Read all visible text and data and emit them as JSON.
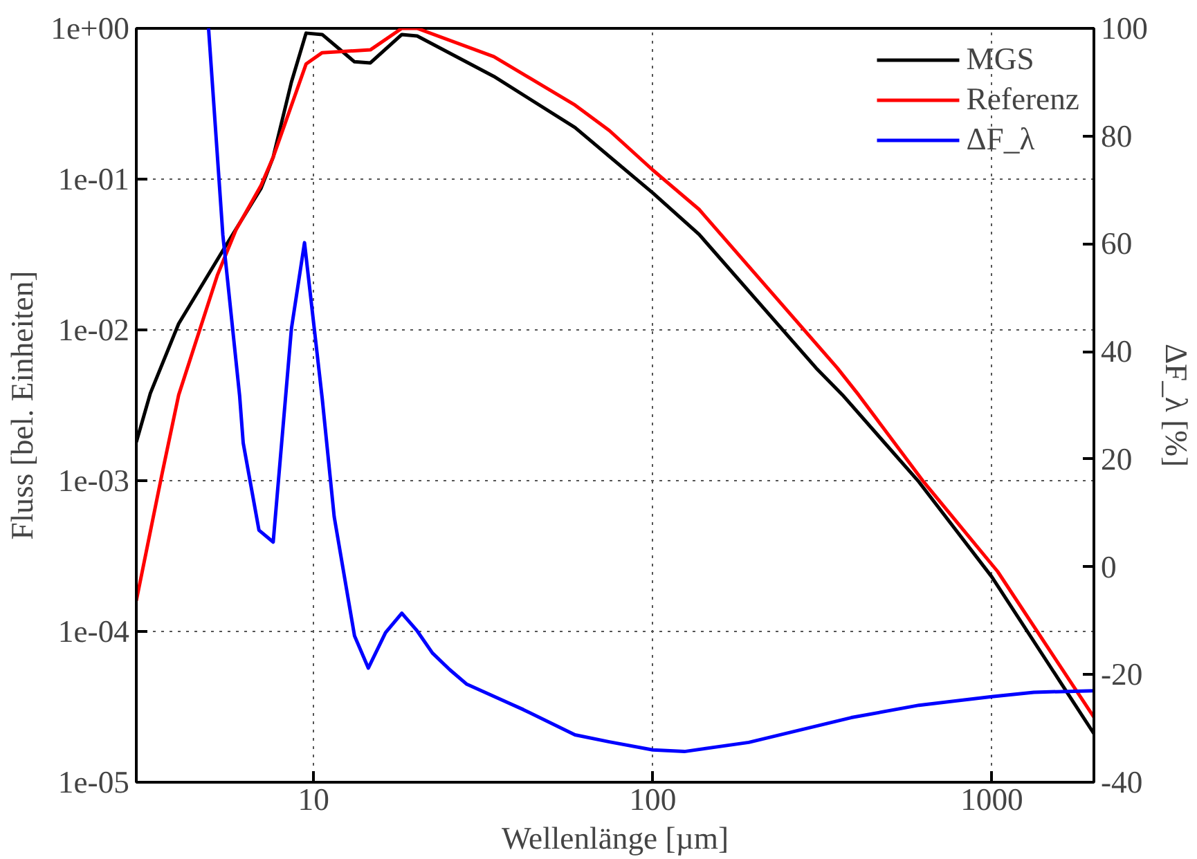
{
  "chart_data": {
    "type": "line",
    "xlabel": "Wellenlänge [µm]",
    "ylabel": "Fluss [bel. Einheiten]",
    "y2label": "ΔF_λ [%]",
    "log": "xy",
    "grid": true,
    "legend": "top right",
    "line_style": "solid",
    "marker": "none",
    "xlim": [
      3,
      2000
    ],
    "xticks": [
      10,
      100,
      1000
    ],
    "ylim": [
      1e-05,
      1
    ],
    "yticks": [
      {
        "value": 1,
        "label": "1e+00"
      },
      {
        "value": 0.1,
        "label": "1e-01"
      },
      {
        "value": 0.01,
        "label": "1e-02"
      },
      {
        "value": 0.001,
        "label": "1e-03"
      },
      {
        "value": 0.0001,
        "label": "1e-04"
      },
      {
        "value": 1e-05,
        "label": "1e-05"
      }
    ],
    "y2lim": [
      -40,
      100
    ],
    "y2ticks": [
      -40,
      -20,
      0,
      20,
      40,
      60,
      80,
      100
    ],
    "series": [
      {
        "name": "MGS",
        "color": "#000000",
        "x": [
          3,
          3.3,
          4,
          5.5,
          7,
          7.6,
          8.6,
          9.5,
          10.6,
          13.2,
          14.7,
          18.2,
          20.2,
          34,
          59,
          100,
          137,
          303,
          363,
          610,
          1000,
          2000
        ],
        "values": [
          0.0018,
          0.0038,
          0.011,
          0.036,
          0.087,
          0.14,
          0.44,
          0.93,
          0.91,
          0.6,
          0.59,
          0.91,
          0.89,
          0.48,
          0.22,
          0.081,
          0.043,
          0.0056,
          0.0037,
          0.00098,
          0.00023,
          2.1e-05
        ]
      },
      {
        "name": "Referenz",
        "color": "#ff0000",
        "x": [
          3,
          3.57,
          4,
          5.2,
          5.9,
          7,
          7.6,
          9.5,
          10.6,
          14.7,
          18.2,
          20.2,
          34,
          59,
          74.5,
          100,
          137,
          350,
          405,
          630,
          1040,
          2000
        ],
        "values": [
          0.00016,
          0.0011,
          0.0037,
          0.023,
          0.046,
          0.091,
          0.14,
          0.58,
          0.69,
          0.72,
          1.0,
          1.0,
          0.65,
          0.31,
          0.21,
          0.115,
          0.063,
          0.0056,
          0.0037,
          0.00098,
          0.00025,
          2.7e-05
        ]
      },
      {
        "name": "ΔF_λ",
        "color": "#0000ff",
        "axis": "y2",
        "x": [
          4.9,
          5.4,
          6.05,
          6.2,
          6.9,
          7.6,
          8.6,
          9.4,
          10.6,
          11.5,
          13.2,
          14.5,
          16.3,
          18.2,
          20.2,
          22.4,
          25.2,
          28.3,
          41.5,
          59,
          74.5,
          100,
          124,
          192,
          385,
          610,
          1000,
          1330,
          2000
        ],
        "values": [
          100,
          61.6,
          31.8,
          23,
          6.8,
          4.6,
          44.2,
          60.2,
          31.3,
          9.3,
          -12.8,
          -18.8,
          -12.2,
          -8.6,
          -11.9,
          -16,
          -19.1,
          -21.8,
          -26.5,
          -31.2,
          -32.5,
          -34,
          -34.3,
          -32.6,
          -28,
          -25.7,
          -24.1,
          -23.3,
          -23
        ]
      }
    ]
  }
}
